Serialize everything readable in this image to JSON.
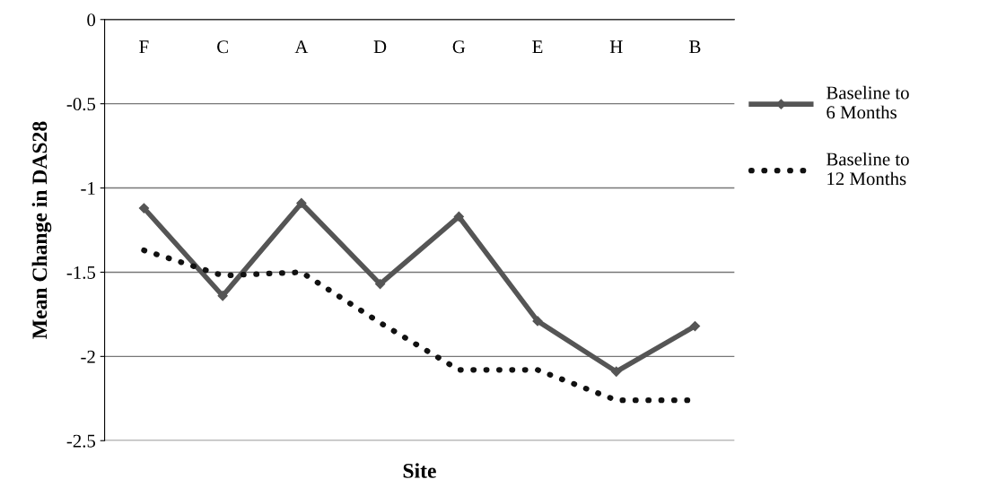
{
  "chart_data": {
    "type": "line",
    "xlabel": "Site",
    "ylabel": "Mean Change in DAS28",
    "categories": [
      "F",
      "C",
      "A",
      "D",
      "G",
      "E",
      "H",
      "B"
    ],
    "series": [
      {
        "name": "Baseline to\n6 Months",
        "color": "#555555",
        "line_style": "solid",
        "marker": "diamond",
        "values": [
          -1.12,
          -1.64,
          -1.09,
          -1.57,
          -1.17,
          -1.79,
          -2.09,
          -1.82
        ]
      },
      {
        "name": "Baseline to\n12 Months",
        "color": "#111111",
        "line_style": "dotted",
        "marker": "none",
        "values": [
          -1.37,
          -1.52,
          -1.5,
          -1.8,
          -2.08,
          -2.08,
          -2.26,
          -2.26
        ]
      }
    ],
    "ylim": [
      -2.5,
      0
    ],
    "yticks": [
      -2.5,
      -2,
      -1.5,
      -1,
      -0.5,
      0
    ],
    "grid": "y",
    "legend": "right"
  }
}
